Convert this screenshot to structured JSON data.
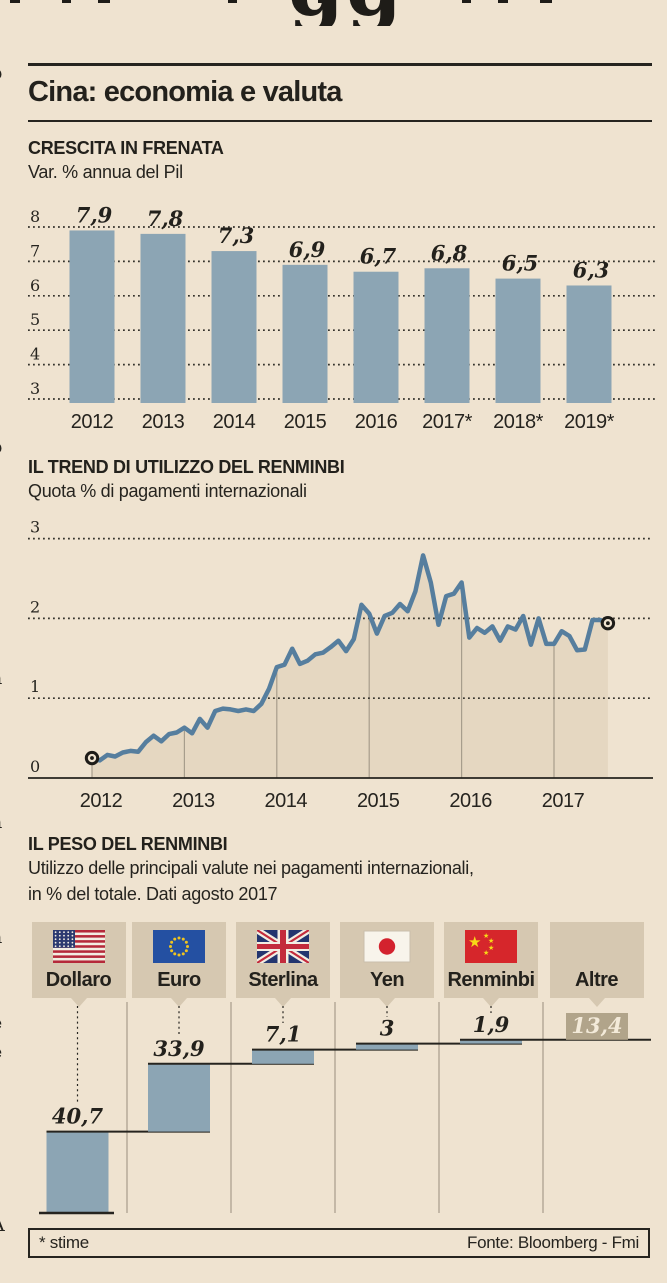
{
  "colors": {
    "background": "#efe3d0",
    "ink": "#26241f",
    "bar_blue": "#8ca5b4",
    "line_blue": "#567e9e",
    "area_fill": "#e5d7c1",
    "box_tan": "#d6c8b1",
    "altre_tan": "#b1a48a",
    "separator": "#a79d8c"
  },
  "masthead_fragment": "gg",
  "margin_fragments": "\no\n\n)\n\n-\n)\n-\n-\n-\ni\ni\n-\n-\no\n-\n-\n-\n-\n-\n-\n'\na\n-\ni\ni\n-\na\n-\n-\n-\na\n,\n.\ne\ne\ni\n,\nl\n\n\nA",
  "panel": {
    "title": "Cina: economia e valuta"
  },
  "chart_data": [
    {
      "type": "bar",
      "title": "CRESCITA IN FRENATA",
      "subtitle": "Var. % annua del Pil",
      "categories": [
        "2012",
        "2013",
        "2014",
        "2015",
        "2016",
        "2017*",
        "2018*",
        "2019*"
      ],
      "values": [
        7.9,
        7.8,
        7.3,
        6.9,
        6.7,
        6.8,
        6.5,
        6.3
      ],
      "value_labels": [
        "7,9",
        "7,8",
        "7,3",
        "6,9",
        "6,7",
        "6,8",
        "6,5",
        "6,3"
      ],
      "yticks": [
        8,
        7,
        6,
        5,
        4,
        3
      ],
      "ylim": [
        2.9,
        8.6
      ],
      "grid": "dotted-horizontal",
      "legend": "none"
    },
    {
      "type": "area",
      "title": "IL TREND DI UTILIZZO DEL RENMINBI",
      "subtitle": "Quota % di pagamenti internazionali",
      "xticks": [
        "2012",
        "2013",
        "2014",
        "2015",
        "2016",
        "2017"
      ],
      "yticks": [
        3,
        2,
        1,
        0
      ],
      "ylim": [
        0,
        3.3
      ],
      "x_start": "2012-01",
      "x_end": "2017-08",
      "values": [
        0.25,
        0.22,
        0.29,
        0.27,
        0.32,
        0.34,
        0.33,
        0.45,
        0.53,
        0.46,
        0.55,
        0.57,
        0.63,
        0.56,
        0.74,
        0.63,
        0.84,
        0.87,
        0.86,
        0.84,
        0.86,
        0.84,
        0.93,
        1.12,
        1.39,
        1.42,
        1.62,
        1.43,
        1.47,
        1.55,
        1.57,
        1.64,
        1.72,
        1.59,
        1.74,
        2.17,
        2.06,
        1.81,
        2.03,
        2.07,
        2.18,
        2.09,
        2.34,
        2.79,
        2.45,
        1.92,
        2.28,
        2.31,
        2.45,
        1.76,
        1.88,
        1.82,
        1.9,
        1.72,
        1.9,
        1.86,
        2.03,
        1.67,
        2.0,
        1.68,
        1.68,
        1.84,
        1.78,
        1.6,
        1.61,
        1.98,
        1.98,
        1.94
      ],
      "endpoint_markers": true,
      "first_value": 0.25,
      "last_value": 1.9
    },
    {
      "type": "waterfall",
      "title": "IL PESO DEL RENMINBI",
      "subtitle_lines": [
        "Utilizzo delle principali  valute nei pagamenti internazionali,",
        "in % del totale. Dati agosto 2017"
      ],
      "total": 100,
      "items": [
        {
          "label": "Dollaro",
          "flag": "us",
          "value": 40.7,
          "value_label": "40,7",
          "highlight": false
        },
        {
          "label": "Euro",
          "flag": "eu",
          "value": 33.9,
          "value_label": "33,9",
          "highlight": false
        },
        {
          "label": "Sterlina",
          "flag": "uk",
          "value": 7.1,
          "value_label": "7,1",
          "highlight": false
        },
        {
          "label": "Yen",
          "flag": "jp",
          "value": 3,
          "value_label": "3",
          "highlight": false
        },
        {
          "label": "Renminbi",
          "flag": "cn",
          "value": 1.9,
          "value_label": "1,9",
          "highlight": false
        },
        {
          "label": "Altre",
          "flag": null,
          "value": 13.4,
          "value_label": "13,4",
          "highlight": true
        }
      ]
    }
  ],
  "footer": {
    "note": "* stime",
    "source": "Fonte: Bloomberg - Fmi"
  }
}
